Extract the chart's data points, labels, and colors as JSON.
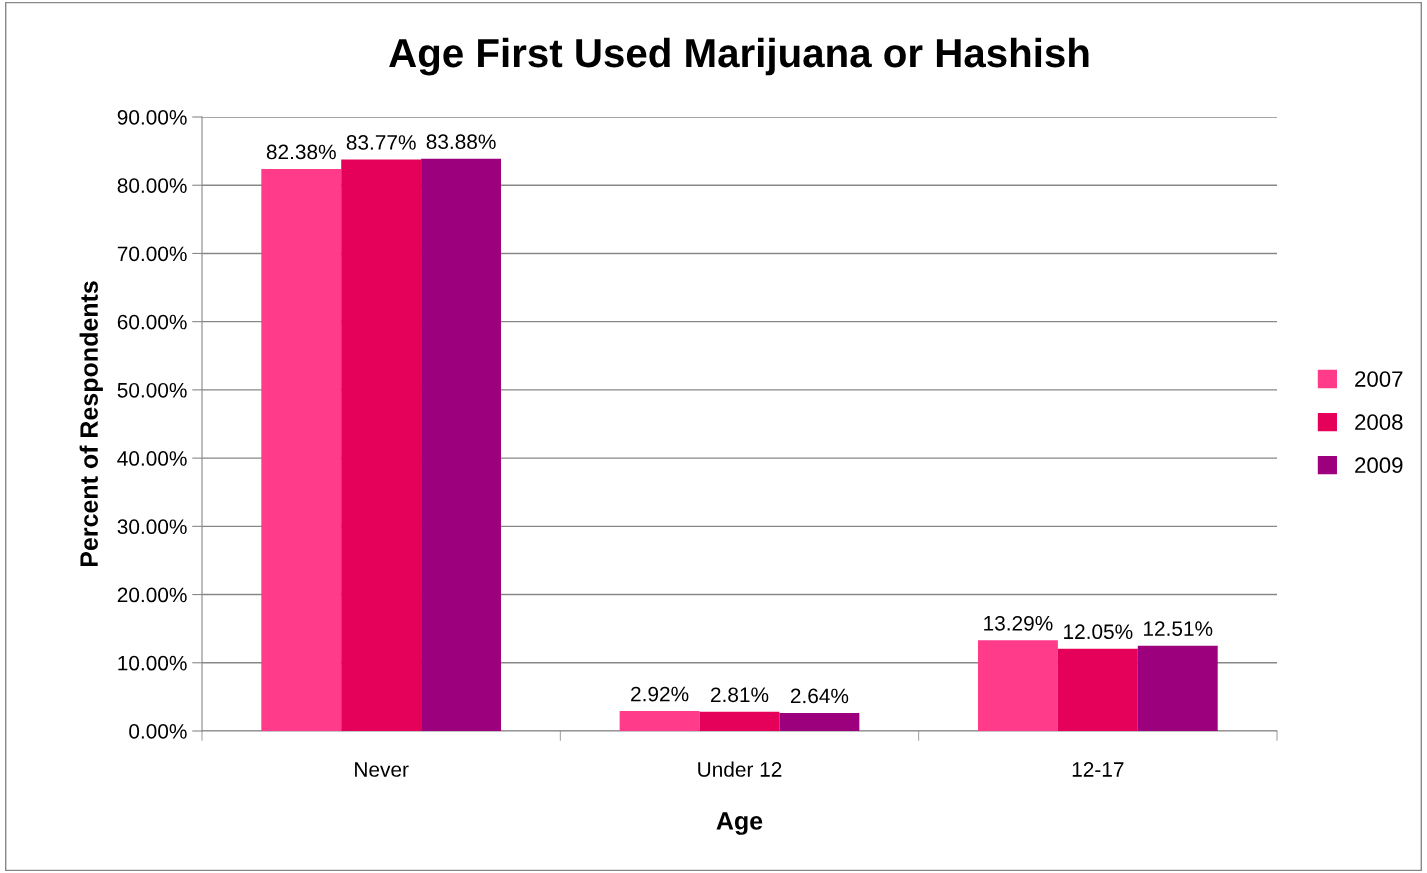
{
  "chart_data": {
    "type": "bar",
    "title": "Age First Used Marijuana or Hashish",
    "xlabel": "Age",
    "ylabel": "Percent of Respondents",
    "categories": [
      "Never",
      "Under 12",
      "12-17"
    ],
    "series": [
      {
        "name": "2007",
        "color": "#ff3b8a",
        "values": [
          82.38,
          2.92,
          13.29
        ],
        "value_labels": [
          "82.38%",
          "2.92%",
          "13.29%"
        ]
      },
      {
        "name": "2008",
        "color": "#e5005a",
        "values": [
          83.77,
          2.81,
          12.05
        ],
        "value_labels": [
          "83.77%",
          "2.81%",
          "12.05%"
        ]
      },
      {
        "name": "2009",
        "color": "#9c007c",
        "values": [
          83.88,
          2.64,
          12.51
        ],
        "value_labels": [
          "83.88%",
          "2.64%",
          "12.51%"
        ]
      }
    ],
    "ylim": [
      0,
      90
    ],
    "yticks": [
      {
        "value": 0,
        "label": "0.00%"
      },
      {
        "value": 10,
        "label": "10.00%"
      },
      {
        "value": 20,
        "label": "20.00%"
      },
      {
        "value": 30,
        "label": "30.00%"
      },
      {
        "value": 40,
        "label": "40.00%"
      },
      {
        "value": 50,
        "label": "50.00%"
      },
      {
        "value": 60,
        "label": "60.00%"
      },
      {
        "value": 70,
        "label": "70.00%"
      },
      {
        "value": 80,
        "label": "80.00%"
      },
      {
        "value": 90,
        "label": "90.00%"
      }
    ],
    "grid": "y",
    "legend": "right"
  }
}
